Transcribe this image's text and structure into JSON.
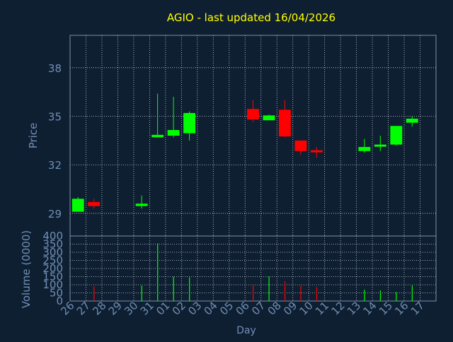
{
  "title": "AGIO - last updated 16/04/2026",
  "colors": {
    "background": "#0f1f32",
    "title": "#ffff00",
    "axis_text": "#6f8fb5",
    "frame": "#7d8fa5",
    "grid": "#c8d0da",
    "up": "#00ff00",
    "down": "#ff0000"
  },
  "chart_data": [
    {
      "type": "candlestick",
      "ylabel": "Price",
      "ylim": [
        27.6,
        40.0
      ],
      "yticks": [
        29,
        32,
        35,
        38
      ],
      "grid": true,
      "candles": [
        {
          "x": "26",
          "open": 29.1,
          "high": 30.0,
          "low": 29.1,
          "close": 29.9
        },
        {
          "x": "27",
          "open": 29.7,
          "high": 29.9,
          "low": 29.3,
          "close": 29.45
        },
        {
          "x": "30",
          "open": 29.45,
          "high": 30.1,
          "low": 29.3,
          "close": 29.6
        },
        {
          "x": "31",
          "open": 33.7,
          "high": 36.4,
          "low": 33.7,
          "close": 33.85
        },
        {
          "x": "01",
          "open": 33.8,
          "high": 36.2,
          "low": 33.7,
          "close": 34.15
        },
        {
          "x": "02",
          "open": 33.95,
          "high": 35.3,
          "low": 33.5,
          "close": 35.2
        },
        {
          "x": "06",
          "open": 35.45,
          "high": 36.0,
          "low": 34.65,
          "close": 34.8
        },
        {
          "x": "07",
          "open": 34.75,
          "high": 35.1,
          "low": 34.75,
          "close": 35.05
        },
        {
          "x": "08",
          "open": 35.4,
          "high": 36.0,
          "low": 33.7,
          "close": 33.75
        },
        {
          "x": "09",
          "open": 33.5,
          "high": 33.5,
          "low": 32.6,
          "close": 32.85
        },
        {
          "x": "10",
          "open": 32.9,
          "high": 33.1,
          "low": 32.45,
          "close": 32.85
        },
        {
          "x": "13",
          "open": 32.85,
          "high": 33.6,
          "low": 32.75,
          "close": 33.1
        },
        {
          "x": "14",
          "open": 33.15,
          "high": 33.8,
          "low": 32.85,
          "close": 33.25
        },
        {
          "x": "15",
          "open": 33.25,
          "high": 34.4,
          "low": 33.2,
          "close": 34.4
        },
        {
          "x": "16",
          "open": 34.6,
          "high": 35.0,
          "low": 34.35,
          "close": 34.85
        }
      ]
    },
    {
      "type": "bar",
      "xlabel": "Day",
      "ylabel": "Volume (0000)",
      "ylim": [
        0,
        400
      ],
      "yticks": [
        0,
        50,
        100,
        150,
        200,
        250,
        300,
        350,
        400
      ],
      "categories": [
        "26",
        "27",
        "28",
        "29",
        "30",
        "31",
        "01",
        "02",
        "03",
        "04",
        "05",
        "06",
        "07",
        "08",
        "09",
        "10",
        "11",
        "12",
        "13",
        "14",
        "15",
        "16",
        "17"
      ],
      "values": [
        0,
        90,
        0,
        0,
        95,
        355,
        150,
        145,
        0,
        0,
        0,
        100,
        150,
        120,
        95,
        85,
        0,
        0,
        70,
        65,
        55,
        95,
        0
      ],
      "bar_colors": [
        "none",
        "down",
        "none",
        "none",
        "up",
        "up",
        "up",
        "up",
        "none",
        "none",
        "none",
        "down",
        "up",
        "down",
        "down",
        "down",
        "none",
        "none",
        "up",
        "up",
        "up",
        "up",
        "none"
      ],
      "grid": true
    }
  ]
}
